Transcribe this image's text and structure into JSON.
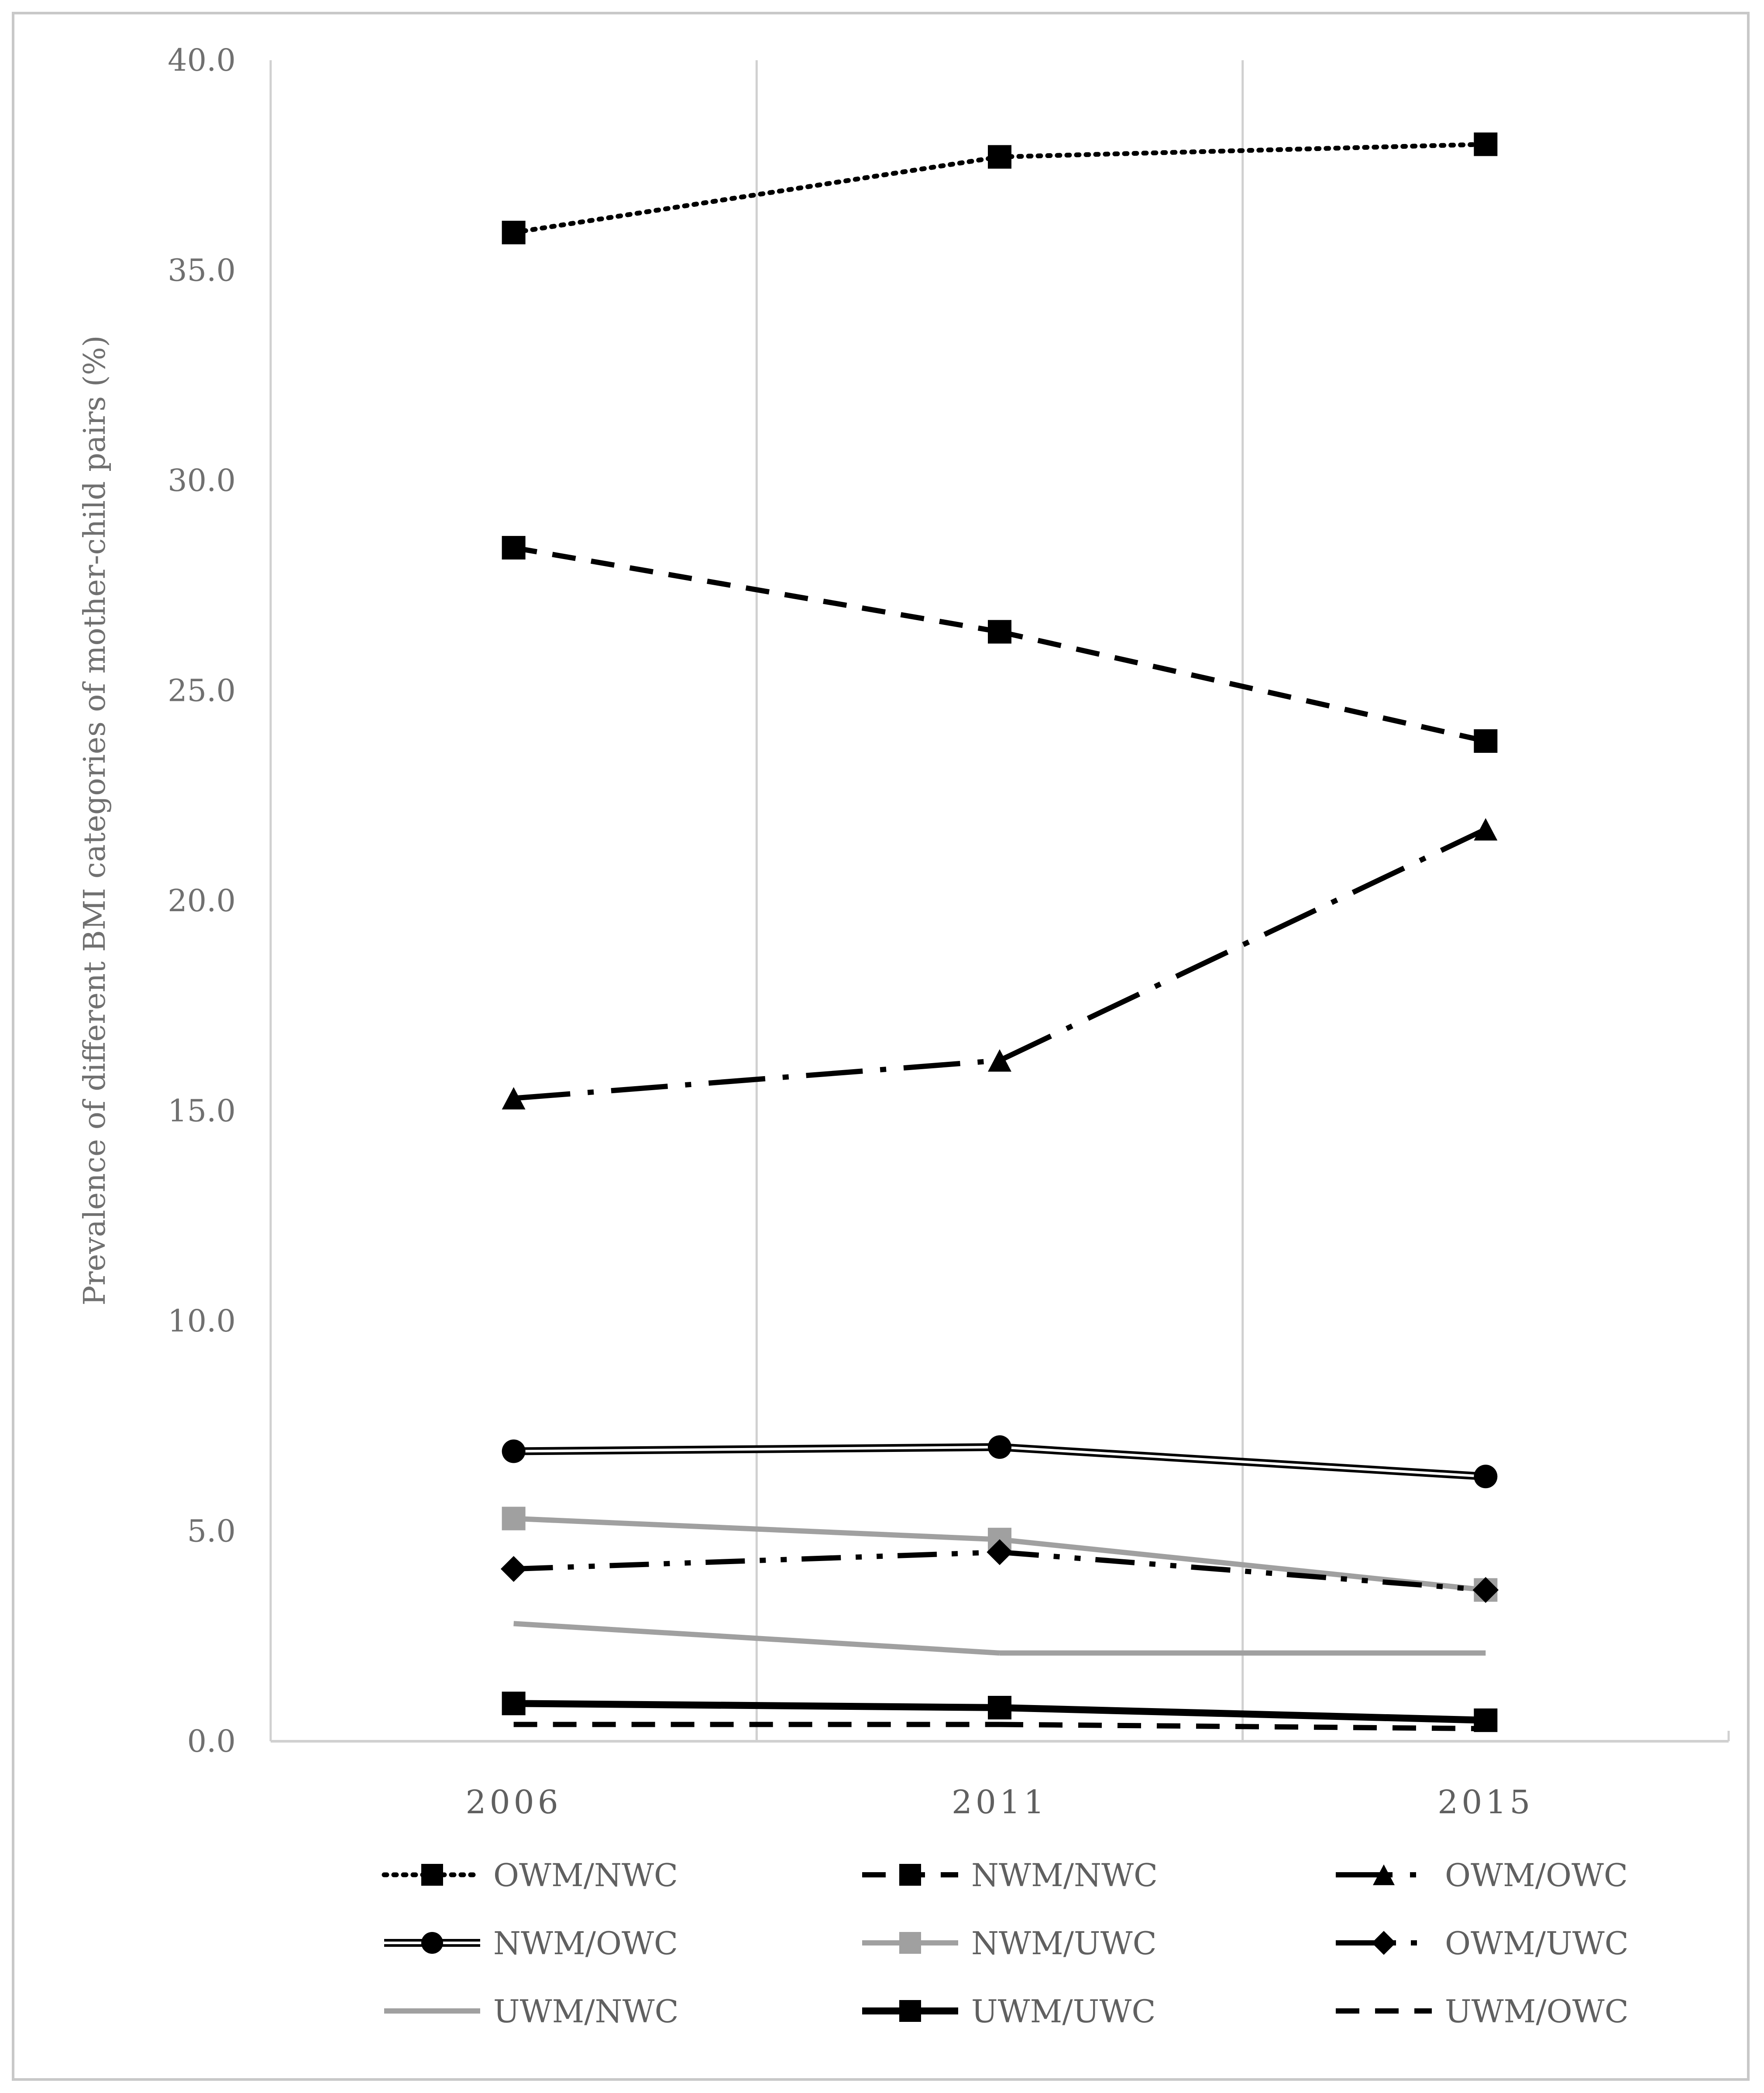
{
  "chart_data": {
    "type": "line",
    "title": "",
    "xlabel": "",
    "ylabel": "Prevalence of different BMI categories of mother-child pairs (%)",
    "categories": [
      "2006",
      "2011",
      "2015"
    ],
    "ylim": [
      0,
      40
    ],
    "yticks": [
      "0.0",
      "5.0",
      "10.0",
      "15.0",
      "20.0",
      "25.0",
      "30.0",
      "35.0",
      "40.0"
    ],
    "grid": "vertical",
    "legend_position": "bottom",
    "series": [
      {
        "name": "OWM/NWC",
        "values": [
          35.9,
          37.7,
          38.0
        ],
        "color": "#000000",
        "style": "dotted",
        "marker": "square"
      },
      {
        "name": "NWM/NWC",
        "values": [
          28.4,
          26.4,
          23.8
        ],
        "color": "#000000",
        "style": "dashed",
        "marker": "square"
      },
      {
        "name": "OWM/OWC",
        "values": [
          15.3,
          16.2,
          21.7
        ],
        "color": "#000000",
        "style": "dash-dot",
        "marker": "triangle"
      },
      {
        "name": "NWM/OWC",
        "values": [
          6.9,
          7.0,
          6.3
        ],
        "color": "#000000",
        "style": "double",
        "marker": "circle"
      },
      {
        "name": "NWM/UWC",
        "values": [
          5.3,
          4.8,
          3.6
        ],
        "color": "#a0a0a0",
        "style": "solid",
        "marker": "square"
      },
      {
        "name": "OWM/UWC",
        "values": [
          4.1,
          4.5,
          3.6
        ],
        "color": "#000000",
        "style": "dash-dot-dot",
        "marker": "diamond"
      },
      {
        "name": "UWM/NWC",
        "values": [
          2.8,
          2.1,
          2.1
        ],
        "color": "#a0a0a0",
        "style": "solid",
        "marker": "none"
      },
      {
        "name": "UWM/UWC",
        "values": [
          0.9,
          0.8,
          0.5
        ],
        "color": "#000000",
        "style": "solid-thick",
        "marker": "square"
      },
      {
        "name": "UWM/OWC",
        "values": [
          0.4,
          0.4,
          0.3
        ],
        "color": "#000000",
        "style": "dashed",
        "marker": "none"
      }
    ]
  }
}
